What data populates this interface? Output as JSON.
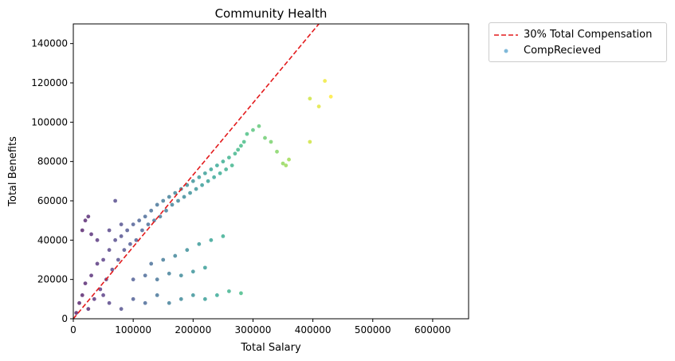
{
  "chart_data": {
    "type": "scatter",
    "title": "Community Health",
    "xlabel": "Total Salary",
    "ylabel": "Total Benefits",
    "xlim": [
      0,
      660000
    ],
    "ylim": [
      0,
      150000
    ],
    "xticks": [
      0,
      100000,
      200000,
      300000,
      400000,
      500000,
      600000
    ],
    "yticks": [
      0,
      20000,
      40000,
      60000,
      80000,
      100000,
      120000,
      140000
    ],
    "xtick_labels": [
      "0",
      "100000",
      "200000",
      "300000",
      "400000",
      "500000",
      "600000"
    ],
    "ytick_labels": [
      "0",
      "20000",
      "40000",
      "60000",
      "80000",
      "100000",
      "120000",
      "140000"
    ],
    "grid": false,
    "legend_position": "outside top-right",
    "colormap": "viridis",
    "series": [
      {
        "name": "30% Total Compensation",
        "kind": "line",
        "style": "dashed",
        "color": "#e31a1c",
        "x": [
          0,
          410000
        ],
        "y": [
          0,
          150000
        ]
      },
      {
        "name": "CompRecieved",
        "kind": "scatter",
        "color": "#4a9bc9",
        "color_by": "x",
        "points": [
          [
            5000,
            3000
          ],
          [
            10000,
            8000
          ],
          [
            15000,
            12000
          ],
          [
            20000,
            18000
          ],
          [
            25000,
            5000
          ],
          [
            30000,
            22000
          ],
          [
            35000,
            10000
          ],
          [
            40000,
            28000
          ],
          [
            45000,
            15000
          ],
          [
            50000,
            30000
          ],
          [
            55000,
            20000
          ],
          [
            60000,
            35000
          ],
          [
            65000,
            25000
          ],
          [
            70000,
            40000
          ],
          [
            75000,
            30000
          ],
          [
            80000,
            42000
          ],
          [
            85000,
            35000
          ],
          [
            90000,
            45000
          ],
          [
            95000,
            38000
          ],
          [
            100000,
            48000
          ],
          [
            105000,
            40000
          ],
          [
            110000,
            50000
          ],
          [
            115000,
            45000
          ],
          [
            120000,
            52000
          ],
          [
            125000,
            48000
          ],
          [
            130000,
            55000
          ],
          [
            135000,
            50000
          ],
          [
            140000,
            58000
          ],
          [
            145000,
            52000
          ],
          [
            150000,
            60000
          ],
          [
            155000,
            55000
          ],
          [
            160000,
            62000
          ],
          [
            165000,
            58000
          ],
          [
            170000,
            64000
          ],
          [
            175000,
            60000
          ],
          [
            180000,
            66000
          ],
          [
            185000,
            62000
          ],
          [
            190000,
            68000
          ],
          [
            195000,
            64000
          ],
          [
            200000,
            70000
          ],
          [
            205000,
            66000
          ],
          [
            210000,
            72000
          ],
          [
            215000,
            68000
          ],
          [
            220000,
            74000
          ],
          [
            225000,
            70000
          ],
          [
            230000,
            76000
          ],
          [
            235000,
            72000
          ],
          [
            240000,
            78000
          ],
          [
            245000,
            74000
          ],
          [
            250000,
            80000
          ],
          [
            255000,
            76000
          ],
          [
            260000,
            82000
          ],
          [
            265000,
            78000
          ],
          [
            270000,
            84000
          ],
          [
            275000,
            86000
          ],
          [
            280000,
            88000
          ],
          [
            285000,
            90000
          ],
          [
            290000,
            94000
          ],
          [
            300000,
            96000
          ],
          [
            310000,
            98000
          ],
          [
            320000,
            92000
          ],
          [
            330000,
            90000
          ],
          [
            340000,
            85000
          ],
          [
            350000,
            79000
          ],
          [
            355000,
            78000
          ],
          [
            360000,
            81000
          ],
          [
            15000,
            45000
          ],
          [
            20000,
            50000
          ],
          [
            25000,
            52000
          ],
          [
            30000,
            43000
          ],
          [
            40000,
            40000
          ],
          [
            60000,
            45000
          ],
          [
            70000,
            60000
          ],
          [
            80000,
            48000
          ],
          [
            50000,
            12000
          ],
          [
            60000,
            8000
          ],
          [
            80000,
            5000
          ],
          [
            100000,
            10000
          ],
          [
            120000,
            8000
          ],
          [
            140000,
            12000
          ],
          [
            160000,
            8000
          ],
          [
            180000,
            10000
          ],
          [
            200000,
            12000
          ],
          [
            220000,
            10000
          ],
          [
            240000,
            12000
          ],
          [
            260000,
            14000
          ],
          [
            280000,
            13000
          ],
          [
            100000,
            20000
          ],
          [
            120000,
            22000
          ],
          [
            140000,
            20000
          ],
          [
            160000,
            23000
          ],
          [
            180000,
            22000
          ],
          [
            200000,
            24000
          ],
          [
            220000,
            26000
          ],
          [
            130000,
            28000
          ],
          [
            150000,
            30000
          ],
          [
            170000,
            32000
          ],
          [
            190000,
            35000
          ],
          [
            210000,
            38000
          ],
          [
            230000,
            40000
          ],
          [
            250000,
            42000
          ],
          [
            395000,
            90000
          ],
          [
            395000,
            112000
          ],
          [
            410000,
            108000
          ],
          [
            420000,
            121000
          ],
          [
            430000,
            113000
          ]
        ]
      }
    ]
  }
}
